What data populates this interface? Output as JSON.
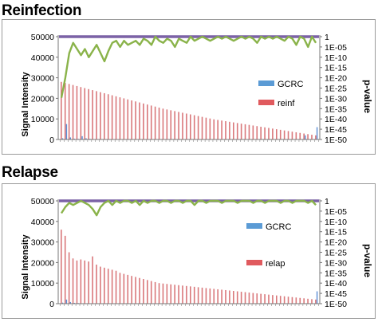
{
  "panels": [
    {
      "id": "reinfection",
      "title": "Reinfection",
      "legend": [
        "GCRC",
        "reinf"
      ]
    },
    {
      "id": "relapse",
      "title": "Relapse",
      "legend": [
        "GCRC",
        "relap"
      ]
    }
  ],
  "colors": {
    "red_series": "#d9777a",
    "blue_series": "#5b8fd6",
    "pvalue_line": "#8ab34a",
    "threshold_line": "#7b62a6",
    "legend_blue": "#5b9bd5",
    "legend_red": "#e05a5e"
  },
  "chart_data": [
    {
      "type": "bar",
      "title": "Reinfection",
      "ylabel": "Signal Intensity",
      "y2label": "p-value",
      "ylim": [
        0,
        50000
      ],
      "yticks": [
        "0",
        "10000",
        "20000",
        "30000",
        "40000",
        "50000"
      ],
      "y2scale": "log",
      "y2ticks": [
        "1",
        "1E-05",
        "1E-10",
        "1E-15",
        "1E-20",
        "1E-25",
        "1E-30",
        "1E-35",
        "1E-40",
        "1E-45",
        "1E-50"
      ],
      "grid": false,
      "legend_position": "right",
      "series": [
        {
          "name": "reinf",
          "values": [
            28000,
            27500,
            27000,
            26500,
            26000,
            25500,
            25000,
            24500,
            24000,
            23500,
            23000,
            22500,
            22000,
            21500,
            21000,
            20500,
            20000,
            19500,
            19000,
            18500,
            18000,
            17500,
            17000,
            16500,
            16000,
            15500,
            15000,
            14600,
            14200,
            13800,
            13400,
            13000,
            12600,
            12200,
            11800,
            11400,
            11000,
            10600,
            10200,
            9800,
            9500,
            9200,
            8900,
            8600,
            8300,
            8000,
            7700,
            7400,
            7100,
            6800,
            6500,
            6200,
            5900,
            5600,
            5300,
            5000,
            4700,
            4400,
            4100,
            3800,
            3500,
            3200,
            2900,
            2600,
            2300,
            2000
          ]
        },
        {
          "name": "GCRC",
          "values": [
            600,
            7500,
            1000,
            400,
            300,
            1600,
            600,
            300,
            200,
            150,
            120,
            100,
            100,
            100,
            80,
            80,
            80,
            60,
            60,
            60,
            50,
            50,
            50,
            50,
            50,
            50,
            50,
            50,
            50,
            50,
            50,
            50,
            50,
            50,
            50,
            50,
            50,
            50,
            50,
            50,
            50,
            50,
            50,
            50,
            50,
            50,
            50,
            50,
            50,
            50,
            50,
            50,
            50,
            50,
            50,
            50,
            50,
            50,
            50,
            50,
            50,
            50,
            2000,
            50,
            50,
            6000
          ]
        },
        {
          "name": "p-value",
          "axis": "p-value",
          "values": [
            2e-30,
            1e-20,
            1e-08,
            0.001,
            1e-06,
            1e-09,
            1e-06,
            1e-10,
            1e-07,
            0.0001,
            1e-08,
            1e-12,
            1e-07,
            0.001,
            0.01,
            1e-05,
            0.01,
            0.0001,
            0.001,
            0.01,
            0.0001,
            0.1,
            0.01,
            0.0001,
            1,
            0.01,
            0.001,
            0.1,
            0.01,
            1e-05,
            0.1,
            0.01,
            0.001,
            1,
            0.01,
            0.1,
            1,
            0.1,
            0.01,
            0.1,
            1,
            0.1,
            1,
            0.1,
            0.01,
            0.1,
            1,
            0.1,
            1,
            0.1,
            0.001,
            1,
            0.1,
            1,
            0.1,
            1,
            0.1,
            0.01,
            1,
            0.1,
            0.0001,
            1,
            0.1,
            1e-05,
            1,
            0.001
          ]
        },
        {
          "name": "threshold",
          "axis": "p-value",
          "constant": 1
        }
      ]
    },
    {
      "type": "bar",
      "title": "Relapse",
      "ylabel": "Signal Intensity",
      "y2label": "p-value",
      "ylim": [
        0,
        50000
      ],
      "yticks": [
        "0",
        "10000",
        "20000",
        "30000",
        "40000",
        "50000"
      ],
      "y2scale": "log",
      "y2ticks": [
        "1",
        "1E-05",
        "1E-10",
        "1E-15",
        "1E-20",
        "1E-25",
        "1E-30",
        "1E-35",
        "1E-40",
        "1E-45",
        "1E-50"
      ],
      "grid": false,
      "legend_position": "right",
      "series": [
        {
          "name": "relap",
          "values": [
            36000,
            33000,
            25000,
            22000,
            21000,
            21500,
            21000,
            20500,
            23000,
            19000,
            18000,
            17500,
            17000,
            16500,
            16000,
            15000,
            14500,
            14000,
            13500,
            13000,
            12500,
            12000,
            11500,
            11000,
            10500,
            10000,
            9800,
            9600,
            9400,
            9200,
            9000,
            8800,
            8600,
            8400,
            8200,
            8000,
            7800,
            7600,
            7400,
            7200,
            7000,
            6800,
            6600,
            6400,
            6200,
            6000,
            5800,
            5600,
            5400,
            5200,
            5000,
            4800,
            4600,
            4400,
            4200,
            4000,
            3800,
            3600,
            3400,
            3200,
            3000,
            2800,
            2600,
            2400,
            2200,
            2000
          ]
        },
        {
          "name": "GCRC",
          "values": [
            500,
            2000,
            800,
            400,
            300,
            200,
            150,
            120,
            100,
            100,
            80,
            80,
            80,
            60,
            60,
            60,
            50,
            50,
            50,
            50,
            50,
            50,
            50,
            50,
            50,
            50,
            50,
            50,
            50,
            50,
            50,
            50,
            50,
            50,
            50,
            50,
            50,
            50,
            50,
            50,
            50,
            50,
            50,
            50,
            50,
            50,
            50,
            50,
            50,
            50,
            50,
            50,
            50,
            50,
            50,
            50,
            50,
            50,
            50,
            50,
            50,
            50,
            50,
            50,
            50,
            6000
          ]
        },
        {
          "name": "p-value",
          "axis": "p-value",
          "values": [
            1e-06,
            0.001,
            0.1,
            0.01,
            0.1,
            1,
            0.1,
            0.01,
            0.0001,
            1e-07,
            0.001,
            0.1,
            1,
            0.01,
            1,
            0.1,
            1,
            1,
            0.1,
            1,
            0.01,
            1,
            0.1,
            1,
            1,
            0.1,
            1,
            1,
            0.1,
            1,
            1,
            0.1,
            1,
            1,
            0.01,
            1,
            1,
            0.1,
            1,
            1,
            1,
            0.1,
            1,
            1,
            1,
            0.1,
            1,
            1,
            1,
            0.1,
            1,
            1,
            0.1,
            1,
            1,
            1,
            0.1,
            1,
            1,
            0.1,
            1,
            1,
            1,
            0.1,
            1,
            0.01
          ]
        },
        {
          "name": "threshold",
          "axis": "p-value",
          "constant": 1
        }
      ]
    }
  ]
}
